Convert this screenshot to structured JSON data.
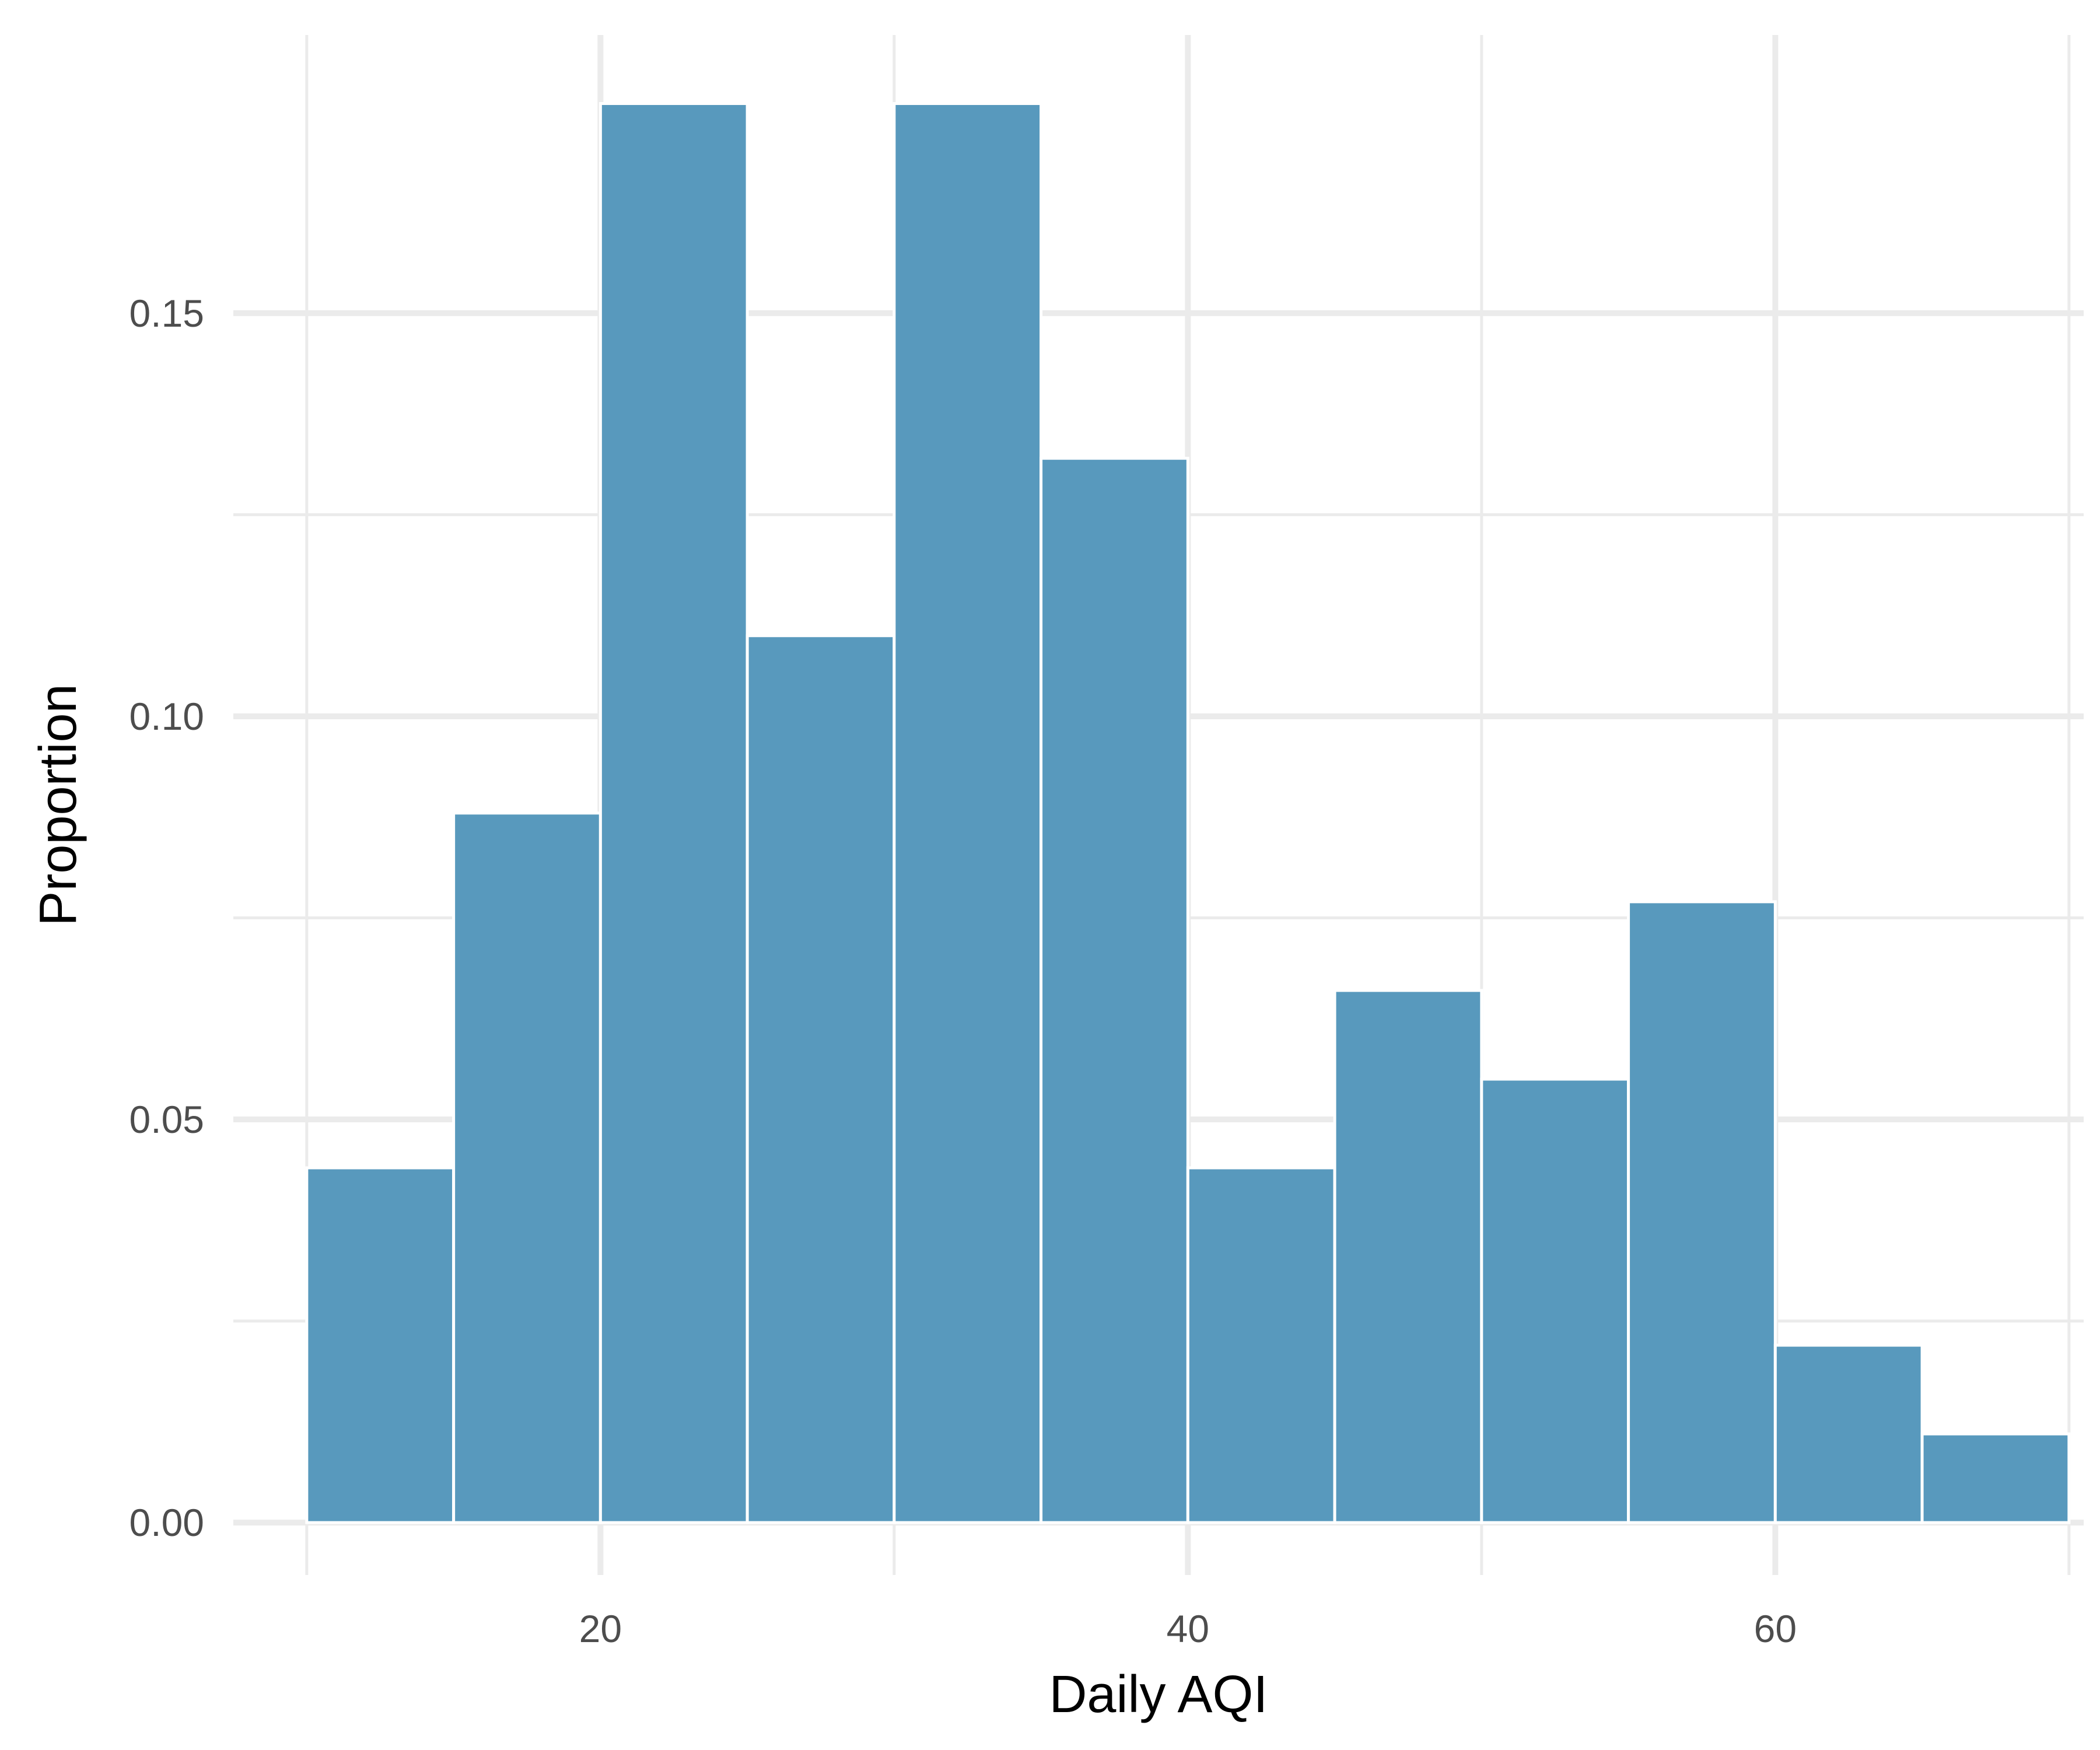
{
  "chart_data": {
    "type": "bar",
    "histogram": true,
    "title": "",
    "xlabel": "Daily AQI",
    "ylabel": "Proportion",
    "bar_color": "#5899bd",
    "bar_outline": "#ffffff",
    "grid_color": "#ebebeb",
    "grid": true,
    "xlim": [
      7.5,
      70.5
    ],
    "ylim": [
      -0.0065,
      0.1845
    ],
    "x_ticks": [
      20,
      40,
      60
    ],
    "x_tick_labels": [
      "20",
      "40",
      "60"
    ],
    "x_minor_grid": [
      10,
      30,
      50,
      70
    ],
    "y_ticks": [
      0.0,
      0.05,
      0.1,
      0.15
    ],
    "y_tick_labels": [
      "0.00",
      "0.05",
      "0.10",
      "0.15"
    ],
    "y_minor_grid": [
      0.025,
      0.075,
      0.125
    ],
    "bins": [
      {
        "x0": 10,
        "x1": 15,
        "value": 0.044
      },
      {
        "x0": 15,
        "x1": 20,
        "value": 0.088
      },
      {
        "x0": 20,
        "x1": 25,
        "value": 0.176
      },
      {
        "x0": 25,
        "x1": 30,
        "value": 0.11
      },
      {
        "x0": 30,
        "x1": 35,
        "value": 0.176
      },
      {
        "x0": 35,
        "x1": 40,
        "value": 0.132
      },
      {
        "x0": 40,
        "x1": 45,
        "value": 0.044
      },
      {
        "x0": 45,
        "x1": 50,
        "value": 0.066
      },
      {
        "x0": 50,
        "x1": 55,
        "value": 0.055
      },
      {
        "x0": 55,
        "x1": 60,
        "value": 0.077
      },
      {
        "x0": 60,
        "x1": 65,
        "value": 0.022
      },
      {
        "x0": 65,
        "x1": 70,
        "value": 0.011
      }
    ]
  }
}
